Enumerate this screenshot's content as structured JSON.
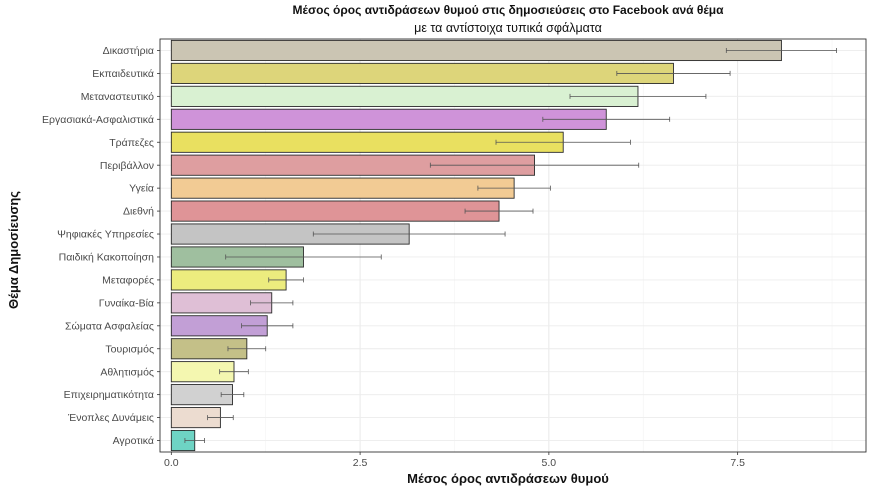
{
  "chart_data": {
    "type": "bar",
    "orientation": "horizontal",
    "title": "Μέσος όρος αντιδράσεων θυμού στις δημοσιεύσεις στο Facebook ανά θέμα",
    "subtitle": "με τα αντίστοιχα τυπικά σφάλματα",
    "xlabel": "Μέσος όρος αντιδράσεων θυμού",
    "ylabel": "Θέμα Δημοσίευσης",
    "xlim": [
      -0.15,
      9.2
    ],
    "xticks": [
      0.0,
      2.5,
      5.0,
      7.5
    ],
    "xtick_labels": [
      "0.0",
      "2.5",
      "5.0",
      "7.5"
    ],
    "grid": true,
    "legend": "none",
    "categories": [
      "Δικαστήρια",
      "Εκπαιδευτικά",
      "Μεταναστευτικό",
      "Εργασιακά-Ασφαλιστικά",
      "Τράπεζες",
      "Περιβάλλον",
      "Υγεία",
      "Διεθνή",
      "Ψηφιακές Υπηρεσίες",
      "Παιδική Κακοποίηση",
      "Μεταφορές",
      "Γυναίκα-Βία",
      "Σώματα Ασφαλείας",
      "Τουρισμός",
      "Αθλητισμός",
      "Επιχειρηματικότητα",
      "Ένοπλες Δυνάμεις",
      "Αγροτικά"
    ],
    "values": [
      8.08,
      6.65,
      6.18,
      5.76,
      5.19,
      4.81,
      4.54,
      4.34,
      3.15,
      1.75,
      1.52,
      1.33,
      1.27,
      1.0,
      0.83,
      0.81,
      0.65,
      0.31
    ],
    "errors": [
      0.73,
      0.75,
      0.9,
      0.84,
      0.89,
      1.38,
      0.48,
      0.45,
      1.27,
      1.03,
      0.23,
      0.28,
      0.34,
      0.25,
      0.19,
      0.15,
      0.17,
      0.13
    ],
    "colors": [
      "#cbc5b3",
      "#ddd57a",
      "#d9f1d2",
      "#cf93d9",
      "#e9e060",
      "#de9ea0",
      "#f2cb94",
      "#df9497",
      "#c4c4c4",
      "#9fbf9f",
      "#ecec7e",
      "#dfbfd6",
      "#c29fd6",
      "#c4c088",
      "#f4f7b0",
      "#d1d1d1",
      "#ecdcd0",
      "#6ed4c4"
    ]
  }
}
